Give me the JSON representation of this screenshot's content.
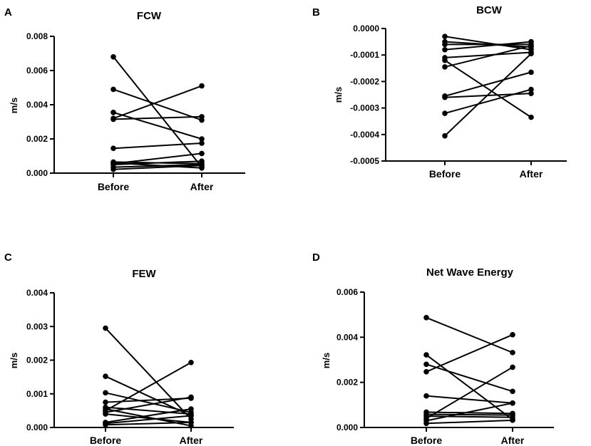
{
  "chart_data": [
    {
      "type": "line",
      "panel": "A",
      "title": "FCW",
      "ylabel": "m/s",
      "categories": [
        "Before",
        "After"
      ],
      "ylim": [
        0,
        0.008
      ],
      "yticks": [
        "0.000",
        "0.002",
        "0.004",
        "0.006",
        "0.008"
      ],
      "ytick_values": [
        0,
        0.002,
        0.004,
        0.006,
        0.008
      ],
      "pairs": [
        [
          0.0068,
          0.00035
        ],
        [
          0.0049,
          0.0031
        ],
        [
          0.00355,
          0.002
        ],
        [
          0.0032,
          0.0051
        ],
        [
          0.00315,
          0.0033
        ],
        [
          0.00145,
          0.00175
        ],
        [
          0.00065,
          0.00055
        ],
        [
          0.0006,
          0.0003
        ],
        [
          0.00055,
          0.00115
        ],
        [
          0.0005,
          0.0007
        ],
        [
          0.00035,
          0.0005
        ],
        [
          0.00022,
          0.00045
        ]
      ]
    },
    {
      "type": "line",
      "panel": "B",
      "title": "BCW",
      "ylabel": "m/s",
      "categories": [
        "Before",
        "After"
      ],
      "ylim": [
        -0.0005,
        0
      ],
      "yticks": [
        "0.0000",
        "-0.0001",
        "-0.0002",
        "-0.0003",
        "-0.0004",
        "-0.0005"
      ],
      "ytick_values": [
        0,
        -0.0001,
        -0.0002,
        -0.0003,
        -0.0004,
        -0.0005
      ],
      "pairs": [
        [
          -3e-05,
          -8e-05
        ],
        [
          -5e-05,
          -7e-05
        ],
        [
          -6e-05,
          -6e-05
        ],
        [
          -8e-05,
          -5e-05
        ],
        [
          -0.00011,
          -9e-05
        ],
        [
          -0.00012,
          -0.000335
        ],
        [
          -0.000145,
          -6.5e-05
        ],
        [
          -0.000255,
          -0.000165
        ],
        [
          -0.00026,
          -0.000245
        ],
        [
          -0.00032,
          -0.00023
        ],
        [
          -0.000405,
          -9.5e-05
        ]
      ]
    },
    {
      "type": "line",
      "panel": "C",
      "title": "FEW",
      "ylabel": "m/s",
      "categories": [
        "Before",
        "After"
      ],
      "ylim": [
        0,
        0.004
      ],
      "yticks": [
        "0.000",
        "0.001",
        "0.002",
        "0.003",
        "0.004"
      ],
      "ytick_values": [
        0,
        0.001,
        0.002,
        0.003,
        0.004
      ],
      "pairs": [
        [
          0.00295,
          0.00025
        ],
        [
          0.00152,
          0.00035
        ],
        [
          0.00103,
          0.00045
        ],
        [
          0.00075,
          0.00087
        ],
        [
          0.0006,
          0.0004
        ],
        [
          0.00055,
          5e-05
        ],
        [
          0.0005,
          0.00193
        ],
        [
          0.00045,
          0.0009
        ],
        [
          0.0004,
          0.00015
        ],
        [
          0.00015,
          0.00055
        ],
        [
          0.00012,
          0.00035
        ],
        [
          8e-05,
          0.00015
        ]
      ]
    },
    {
      "type": "line",
      "panel": "D",
      "title": "Net Wave Energy",
      "ylabel": "m/s",
      "categories": [
        "Before",
        "After"
      ],
      "ylim": [
        0,
        0.006
      ],
      "yticks": [
        "0.000",
        "0.002",
        "0.004",
        "0.006"
      ],
      "ytick_values": [
        0,
        0.002,
        0.004,
        0.006
      ],
      "pairs": [
        [
          0.00487,
          0.00332
        ],
        [
          0.00322,
          0.00035
        ],
        [
          0.0028,
          0.0016
        ],
        [
          0.00247,
          0.00411
        ],
        [
          0.0014,
          0.00108
        ],
        [
          0.00068,
          0.00062
        ],
        [
          0.00058,
          0.00055
        ],
        [
          0.0005,
          0.00045
        ],
        [
          0.0004,
          0.00267
        ],
        [
          0.0003,
          0.00108
        ],
        [
          0.00018,
          0.00032
        ]
      ]
    }
  ]
}
